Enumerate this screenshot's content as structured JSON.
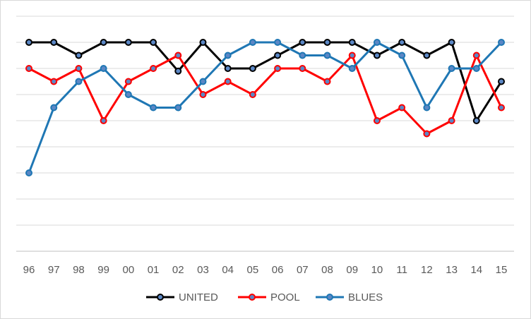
{
  "chart_data": {
    "type": "line",
    "categories": [
      "96",
      "97",
      "98",
      "99",
      "00",
      "01",
      "02",
      "03",
      "04",
      "05",
      "06",
      "07",
      "08",
      "09",
      "10",
      "11",
      "12",
      "13",
      "14",
      "15"
    ],
    "ylim": [
      0,
      9
    ],
    "grid": true,
    "legend_position": "bottom",
    "series": [
      {
        "name": "UNITED",
        "color": "#000000",
        "values": [
          8,
          8,
          7.5,
          8,
          8,
          8,
          6.9,
          8,
          7,
          7,
          7.5,
          8,
          8,
          8,
          7.5,
          8,
          7.5,
          8,
          5,
          6.5
        ]
      },
      {
        "name": "POOL",
        "color": "#ff0000",
        "values": [
          7,
          6.5,
          7,
          5,
          6.5,
          7,
          7.5,
          6,
          6.5,
          6,
          7,
          7,
          6.5,
          7.5,
          5,
          5.5,
          4.5,
          5,
          7.5,
          5.5
        ]
      },
      {
        "name": "BLUES",
        "color": "#1f77b4",
        "values": [
          3,
          5.5,
          6.5,
          7,
          6,
          5.5,
          5.5,
          6.5,
          7.5,
          8,
          8,
          7.5,
          7.5,
          7,
          8,
          7.5,
          5.5,
          7,
          7,
          8
        ]
      }
    ]
  }
}
